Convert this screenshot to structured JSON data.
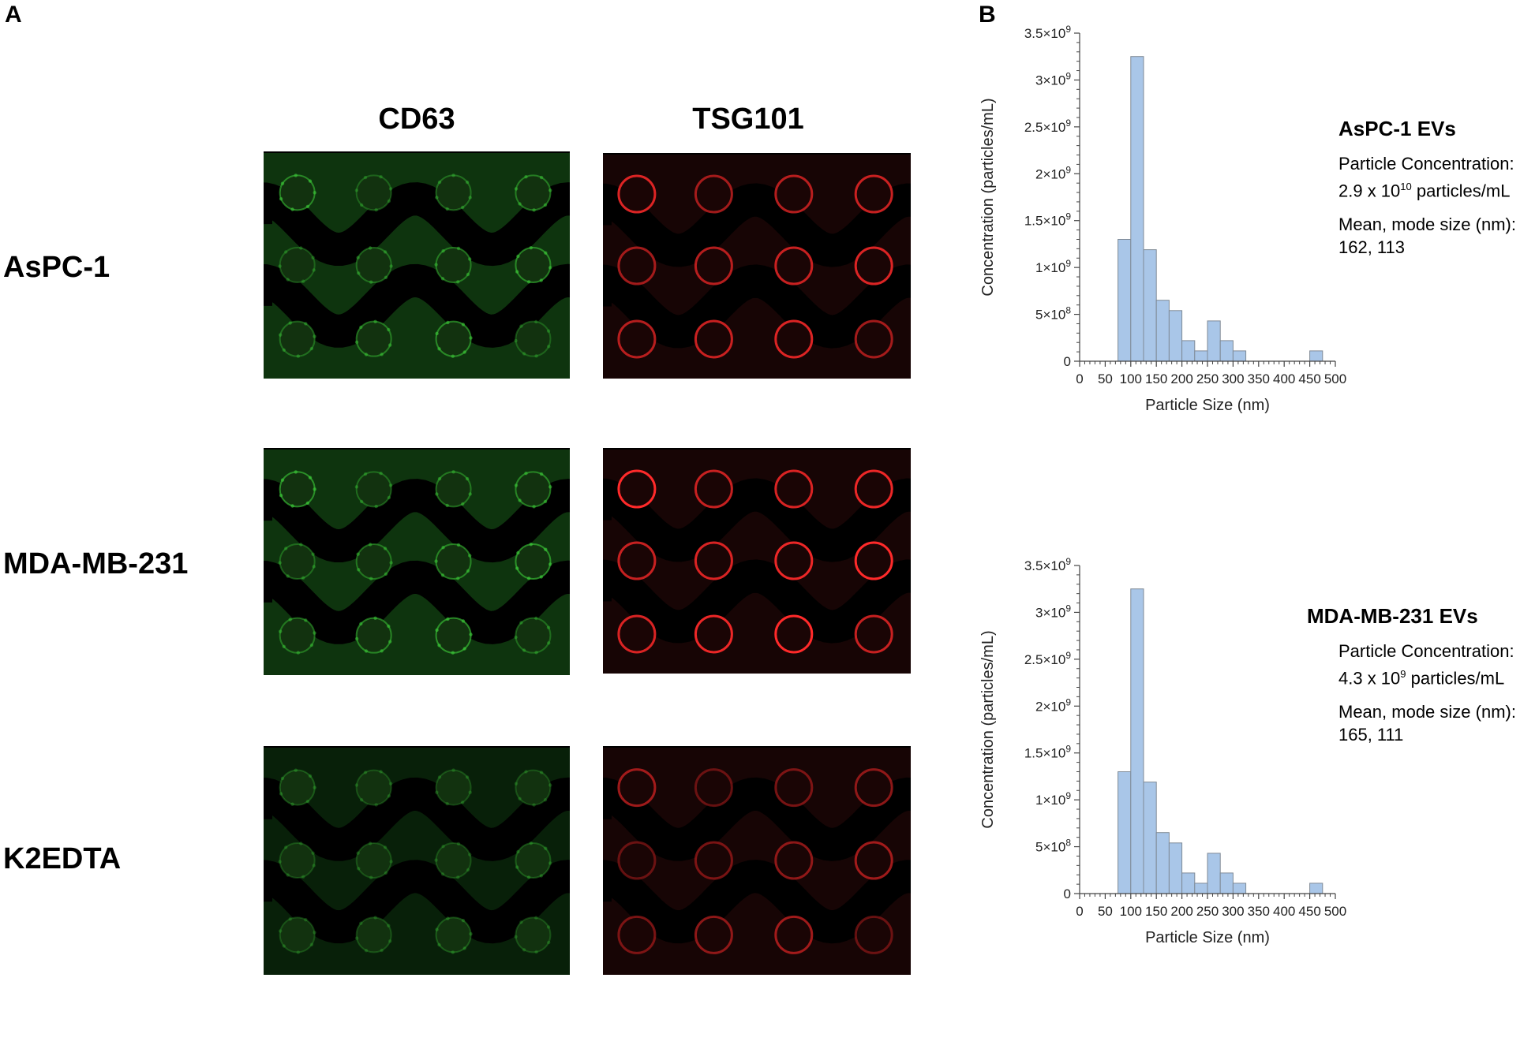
{
  "panel_a": {
    "letter": "A",
    "columns": [
      "CD63",
      "TSG101"
    ],
    "rows": [
      "AsPC-1",
      "MDA-MB-231",
      "K2EDTA"
    ],
    "colors": {
      "cd63": "#3ecf3a",
      "tsg101": "#ff2a2a",
      "channel": "#000000"
    },
    "intensity": {
      "cd63": [
        0.55,
        0.6,
        0.3
      ],
      "tsg101": [
        0.85,
        1.0,
        0.6
      ]
    }
  },
  "panel_b": {
    "letter": "B",
    "charts": [
      {
        "title": "AsPC-1 EVs",
        "conc_label": "Particle Concentration:",
        "conc_value": "2.9 x 10",
        "conc_exp": "10",
        "conc_unit": " particles/mL",
        "size_label": "Mean, mode size (nm):",
        "size_value": "162, 113"
      },
      {
        "title": "MDA-MB-231 EVs",
        "conc_label": "Particle Concentration:",
        "conc_value": "4.3 x 10",
        "conc_exp": "9",
        "conc_unit": " particles/mL",
        "size_label": "Mean, mode size (nm):",
        "size_value": "165, 111"
      }
    ]
  },
  "chart_data": [
    {
      "type": "bar",
      "title": "",
      "xlabel": "Particle Size (nm)",
      "ylabel": "Concentration (particles/mL)",
      "bin_width": 25,
      "bin_starts": [
        75,
        100,
        125,
        150,
        175,
        200,
        225,
        250,
        275,
        300,
        325,
        450
      ],
      "values": [
        1300000000.0,
        3250000000.0,
        1190000000.0,
        650000000.0,
        540000000.0,
        220000000.0,
        110000000.0,
        430000000.0,
        220000000.0,
        110000000.0,
        0,
        110000000.0
      ],
      "xlim": [
        0,
        500
      ],
      "ylim": [
        0,
        3500000000.0
      ],
      "x_ticks": [
        "0",
        "50",
        "100",
        "150",
        "200",
        "250",
        "300",
        "350",
        "400",
        "450",
        "500"
      ],
      "y_tick_values": [
        0,
        500000000.0,
        1000000000.0,
        1500000000.0,
        2000000000.0,
        2500000000.0,
        3000000000.0,
        3500000000.0
      ],
      "y_ticks": [
        {
          "base": "0",
          "exp": ""
        },
        {
          "base": "5×10",
          "exp": "8"
        },
        {
          "base": "1×10",
          "exp": "9"
        },
        {
          "base": "1.5×10",
          "exp": "9"
        },
        {
          "base": "2×10",
          "exp": "9"
        },
        {
          "base": "2.5×10",
          "exp": "9"
        },
        {
          "base": "3×10",
          "exp": "9"
        },
        {
          "base": "3.5×10",
          "exp": "9"
        }
      ],
      "bar_color": "#a9c6e8",
      "grid": false
    },
    {
      "type": "bar",
      "title": "",
      "xlabel": "Particle Size (nm)",
      "ylabel": "Concentration (particles/mL)",
      "bin_width": 25,
      "bin_starts": [
        75,
        100,
        125,
        150,
        175,
        200,
        225,
        250,
        275,
        300,
        325,
        450
      ],
      "values": [
        1300000000.0,
        3250000000.0,
        1190000000.0,
        650000000.0,
        540000000.0,
        220000000.0,
        110000000.0,
        430000000.0,
        220000000.0,
        110000000.0,
        0,
        110000000.0
      ],
      "xlim": [
        0,
        500
      ],
      "ylim": [
        0,
        3500000000.0
      ],
      "x_ticks": [
        "0",
        "50",
        "100",
        "150",
        "200",
        "250",
        "300",
        "350",
        "400",
        "450",
        "500"
      ],
      "y_tick_values": [
        0,
        500000000.0,
        1000000000.0,
        1500000000.0,
        2000000000.0,
        2500000000.0,
        3000000000.0,
        3500000000.0
      ],
      "y_ticks": [
        {
          "base": "0",
          "exp": ""
        },
        {
          "base": "5×10",
          "exp": "8"
        },
        {
          "base": "1×10",
          "exp": "9"
        },
        {
          "base": "1.5×10",
          "exp": "9"
        },
        {
          "base": "2×10",
          "exp": "9"
        },
        {
          "base": "2.5×10",
          "exp": "9"
        },
        {
          "base": "3×10",
          "exp": "9"
        },
        {
          "base": "3.5×10",
          "exp": "9"
        }
      ],
      "bar_color": "#a9c6e8",
      "grid": false
    }
  ]
}
